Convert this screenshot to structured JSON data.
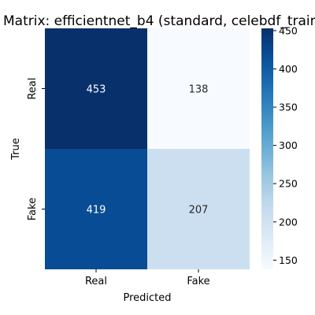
{
  "chart_data": {
    "type": "heatmap",
    "title": "Matrix: efficientnet_b4 (standard, celebdf_train_",
    "xlabel": "Predicted",
    "ylabel": "True",
    "x_categories": [
      "Real",
      "Fake"
    ],
    "y_categories": [
      "Real",
      "Fake"
    ],
    "values": [
      [
        453,
        138
      ],
      [
        419,
        207
      ]
    ],
    "colormap": "Blues",
    "colorbar": {
      "vmin": 138,
      "vmax": 453,
      "ticks": [
        150,
        200,
        250,
        300,
        350,
        400,
        450
      ]
    },
    "colors": {
      "low": "#f7fbff",
      "high": "#08306b"
    }
  }
}
